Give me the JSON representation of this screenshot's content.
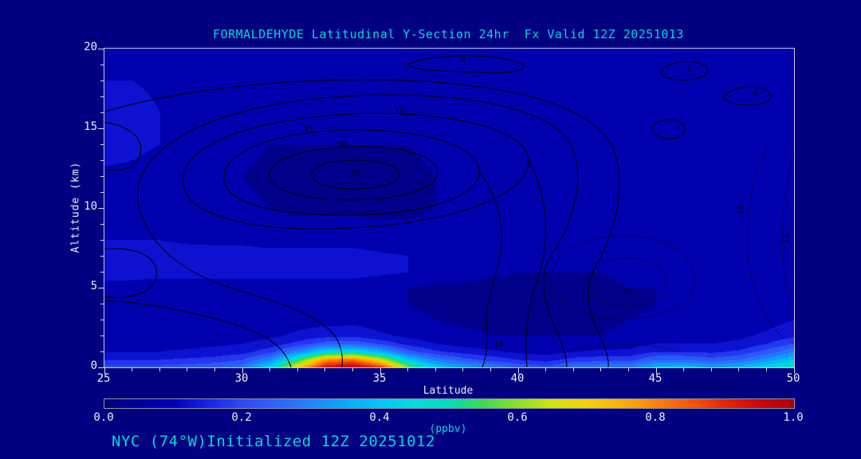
{
  "title": "FORMALDEHYDE Latitudinal Y-Section 24hr  Fx Valid 12Z 20251013",
  "footer": "NYC (74°W)Initialized 12Z 20251012",
  "axes": {
    "x_label": "Latitude",
    "y_label": "Altitude (km)",
    "x_ticks": [
      25,
      30,
      35,
      40,
      45,
      50
    ],
    "y_ticks": [
      0,
      5,
      10,
      15,
      20
    ]
  },
  "colorbar": {
    "ticks": [
      "0.0",
      "0.2",
      "0.4",
      "0.6",
      "0.8",
      "1.0"
    ],
    "label": "(ppbv)"
  },
  "colors": {
    "background": "#000080",
    "title_text": "#00d9d9",
    "axis_text": "#ededed",
    "contour_line": "#000000"
  },
  "chart_data": {
    "type": "heatmap",
    "title": "FORMALDEHYDE Latitudinal Y-Section 24hr Fx Valid 12Z 20251013",
    "xlabel": "Latitude",
    "ylabel": "Altitude (km)",
    "colorbar_label": "(ppbv)",
    "x_range": [
      25,
      50
    ],
    "y_range": [
      0,
      20
    ],
    "value_range": [
      0,
      1
    ],
    "x": [
      25,
      26,
      27,
      28,
      29,
      30,
      31,
      32,
      33,
      34,
      35,
      36,
      37,
      38,
      39,
      40,
      41,
      42,
      43,
      44,
      45,
      46,
      47,
      48,
      49,
      50
    ],
    "y": [
      0,
      0.5,
      1,
      1.5,
      2,
      3,
      4,
      5,
      6,
      7,
      8,
      10,
      12,
      14,
      16,
      18,
      20
    ],
    "values": [
      [
        0.22,
        0.22,
        0.22,
        0.23,
        0.25,
        0.28,
        0.45,
        0.72,
        0.95,
        1.0,
        0.9,
        0.6,
        0.42,
        0.35,
        0.3,
        0.25,
        0.22,
        0.28,
        0.3,
        0.3,
        0.38,
        0.4,
        0.35,
        0.38,
        0.45,
        0.52
      ],
      [
        0.15,
        0.15,
        0.15,
        0.16,
        0.17,
        0.2,
        0.3,
        0.52,
        0.78,
        0.82,
        0.66,
        0.4,
        0.28,
        0.22,
        0.18,
        0.15,
        0.13,
        0.17,
        0.18,
        0.18,
        0.25,
        0.25,
        0.22,
        0.25,
        0.32,
        0.4
      ],
      [
        0.1,
        0.1,
        0.1,
        0.11,
        0.12,
        0.13,
        0.18,
        0.3,
        0.44,
        0.46,
        0.36,
        0.22,
        0.16,
        0.13,
        0.11,
        0.09,
        0.08,
        0.1,
        0.11,
        0.11,
        0.15,
        0.15,
        0.14,
        0.16,
        0.22,
        0.3
      ],
      [
        0.08,
        0.08,
        0.08,
        0.08,
        0.09,
        0.1,
        0.12,
        0.17,
        0.23,
        0.24,
        0.19,
        0.13,
        0.1,
        0.08,
        0.07,
        0.06,
        0.06,
        0.07,
        0.07,
        0.08,
        0.1,
        0.1,
        0.1,
        0.11,
        0.15,
        0.2
      ],
      [
        0.07,
        0.07,
        0.07,
        0.07,
        0.07,
        0.08,
        0.09,
        0.11,
        0.13,
        0.14,
        0.11,
        0.09,
        0.07,
        0.06,
        0.05,
        0.05,
        0.05,
        0.05,
        0.05,
        0.06,
        0.08,
        0.08,
        0.08,
        0.09,
        0.11,
        0.14
      ],
      [
        0.07,
        0.07,
        0.06,
        0.06,
        0.06,
        0.07,
        0.07,
        0.08,
        0.08,
        0.08,
        0.07,
        0.06,
        0.05,
        0.04,
        0.04,
        0.03,
        0.03,
        0.03,
        0.04,
        0.05,
        0.06,
        0.07,
        0.07,
        0.07,
        0.08,
        0.1
      ],
      [
        0.07,
        0.07,
        0.06,
        0.06,
        0.06,
        0.06,
        0.06,
        0.07,
        0.07,
        0.07,
        0.06,
        0.05,
        0.04,
        0.03,
        0.03,
        0.03,
        0.03,
        0.03,
        0.03,
        0.04,
        0.05,
        0.06,
        0.06,
        0.06,
        0.07,
        0.08
      ],
      [
        0.08,
        0.08,
        0.07,
        0.07,
        0.07,
        0.07,
        0.07,
        0.07,
        0.07,
        0.07,
        0.06,
        0.05,
        0.04,
        0.04,
        0.03,
        0.03,
        0.03,
        0.03,
        0.04,
        0.05,
        0.05,
        0.06,
        0.06,
        0.06,
        0.06,
        0.07
      ],
      [
        0.12,
        0.12,
        0.12,
        0.12,
        0.12,
        0.12,
        0.12,
        0.12,
        0.12,
        0.12,
        0.11,
        0.1,
        0.09,
        0.07,
        0.06,
        0.05,
        0.05,
        0.05,
        0.05,
        0.06,
        0.06,
        0.06,
        0.06,
        0.06,
        0.06,
        0.06
      ],
      [
        0.13,
        0.13,
        0.13,
        0.13,
        0.12,
        0.12,
        0.12,
        0.12,
        0.12,
        0.12,
        0.11,
        0.1,
        0.08,
        0.07,
        0.06,
        0.06,
        0.06,
        0.06,
        0.06,
        0.06,
        0.06,
        0.06,
        0.06,
        0.06,
        0.06,
        0.06
      ],
      [
        0.1,
        0.1,
        0.1,
        0.09,
        0.09,
        0.09,
        0.08,
        0.08,
        0.08,
        0.08,
        0.07,
        0.07,
        0.07,
        0.06,
        0.06,
        0.06,
        0.06,
        0.06,
        0.07,
        0.07,
        0.07,
        0.07,
        0.07,
        0.07,
        0.07,
        0.07
      ],
      [
        0.09,
        0.09,
        0.08,
        0.08,
        0.07,
        0.06,
        0.05,
        0.04,
        0.04,
        0.04,
        0.04,
        0.04,
        0.05,
        0.06,
        0.06,
        0.07,
        0.07,
        0.08,
        0.08,
        0.08,
        0.08,
        0.08,
        0.08,
        0.08,
        0.08,
        0.08
      ],
      [
        0.09,
        0.09,
        0.08,
        0.07,
        0.06,
        0.05,
        0.04,
        0.03,
        0.03,
        0.03,
        0.03,
        0.04,
        0.05,
        0.06,
        0.07,
        0.07,
        0.08,
        0.08,
        0.09,
        0.09,
        0.09,
        0.09,
        0.08,
        0.08,
        0.08,
        0.08
      ],
      [
        0.12,
        0.11,
        0.1,
        0.08,
        0.07,
        0.06,
        0.05,
        0.05,
        0.05,
        0.05,
        0.05,
        0.05,
        0.06,
        0.06,
        0.07,
        0.07,
        0.07,
        0.08,
        0.08,
        0.08,
        0.08,
        0.08,
        0.08,
        0.07,
        0.07,
        0.07
      ],
      [
        0.13,
        0.12,
        0.1,
        0.09,
        0.08,
        0.08,
        0.07,
        0.07,
        0.07,
        0.07,
        0.07,
        0.07,
        0.07,
        0.07,
        0.07,
        0.07,
        0.07,
        0.07,
        0.07,
        0.07,
        0.07,
        0.07,
        0.07,
        0.06,
        0.06,
        0.06
      ],
      [
        0.1,
        0.1,
        0.09,
        0.09,
        0.08,
        0.08,
        0.08,
        0.08,
        0.08,
        0.08,
        0.08,
        0.08,
        0.08,
        0.07,
        0.07,
        0.07,
        0.07,
        0.07,
        0.07,
        0.06,
        0.06,
        0.06,
        0.06,
        0.06,
        0.06,
        0.06
      ],
      [
        0.09,
        0.09,
        0.09,
        0.08,
        0.08,
        0.08,
        0.08,
        0.08,
        0.08,
        0.08,
        0.08,
        0.08,
        0.07,
        0.07,
        0.07,
        0.07,
        0.07,
        0.06,
        0.06,
        0.06,
        0.06,
        0.06,
        0.06,
        0.06,
        0.06,
        0.06
      ]
    ],
    "quantize_step": 0.05,
    "colormap_stops": [
      {
        "pos": 0.0,
        "rgb": [
          0,
          0,
          120
        ]
      },
      {
        "pos": 0.05,
        "rgb": [
          0,
          0,
          158
        ]
      },
      {
        "pos": 0.1,
        "rgb": [
          0,
          0,
          190
        ]
      },
      {
        "pos": 0.15,
        "rgb": [
          25,
          35,
          228
        ]
      },
      {
        "pos": 0.2,
        "rgb": [
          45,
          75,
          250
        ]
      },
      {
        "pos": 0.25,
        "rgb": [
          45,
          100,
          254
        ]
      },
      {
        "pos": 0.3,
        "rgb": [
          30,
          135,
          255
        ]
      },
      {
        "pos": 0.35,
        "rgb": [
          5,
          170,
          255
        ]
      },
      {
        "pos": 0.4,
        "rgb": [
          0,
          200,
          250
        ]
      },
      {
        "pos": 0.45,
        "rgb": [
          0,
          222,
          222
        ]
      },
      {
        "pos": 0.5,
        "rgb": [
          0,
          222,
          180
        ]
      },
      {
        "pos": 0.55,
        "rgb": [
          60,
          220,
          80
        ]
      },
      {
        "pos": 0.6,
        "rgb": [
          140,
          228,
          35
        ]
      },
      {
        "pos": 0.65,
        "rgb": [
          210,
          228,
          5
        ]
      },
      {
        "pos": 0.7,
        "rgb": [
          245,
          210,
          0
        ]
      },
      {
        "pos": 0.75,
        "rgb": [
          255,
          175,
          0
        ]
      },
      {
        "pos": 0.8,
        "rgb": [
          255,
          130,
          0
        ]
      },
      {
        "pos": 0.85,
        "rgb": [
          248,
          85,
          0
        ]
      },
      {
        "pos": 0.9,
        "rgb": [
          232,
          38,
          0
        ]
      },
      {
        "pos": 0.95,
        "rgb": [
          205,
          8,
          0
        ]
      },
      {
        "pos": 1.0,
        "rgb": [
          175,
          0,
          0
        ]
      }
    ],
    "contour_levels": {
      "solid": [
        0,
        2,
        5,
        10,
        15,
        20,
        25
      ],
      "dotted": [
        -10,
        -15,
        -20
      ]
    },
    "contour_labels": [
      {
        "text": "0",
        "lat": 38.0,
        "alt": 19.3,
        "rot": 0
      },
      {
        "text": "2",
        "lat": 46.2,
        "alt": 18.7,
        "rot": 0
      },
      {
        "text": "0",
        "lat": 48.6,
        "alt": 17.1,
        "rot": 0
      },
      {
        "text": "10",
        "lat": 35.7,
        "alt": 16.0,
        "rot": 0
      },
      {
        "text": "15",
        "lat": 32.4,
        "alt": 14.9,
        "rot": 0
      },
      {
        "text": "20",
        "lat": 33.6,
        "alt": 13.9,
        "rot": 0
      },
      {
        "text": "25",
        "lat": 34.1,
        "alt": 12.1,
        "rot": 0
      },
      {
        "text": "10",
        "lat": 39.3,
        "alt": 1.4,
        "rot": 0
      },
      {
        "text": "-20",
        "lat": 43.9,
        "alt": 4.7,
        "rot": 0
      },
      {
        "text": "-10",
        "lat": 48.1,
        "alt": 9.7,
        "rot": -80
      },
      {
        "text": "-15",
        "lat": 49.7,
        "alt": 7.9,
        "rot": -80
      }
    ]
  }
}
